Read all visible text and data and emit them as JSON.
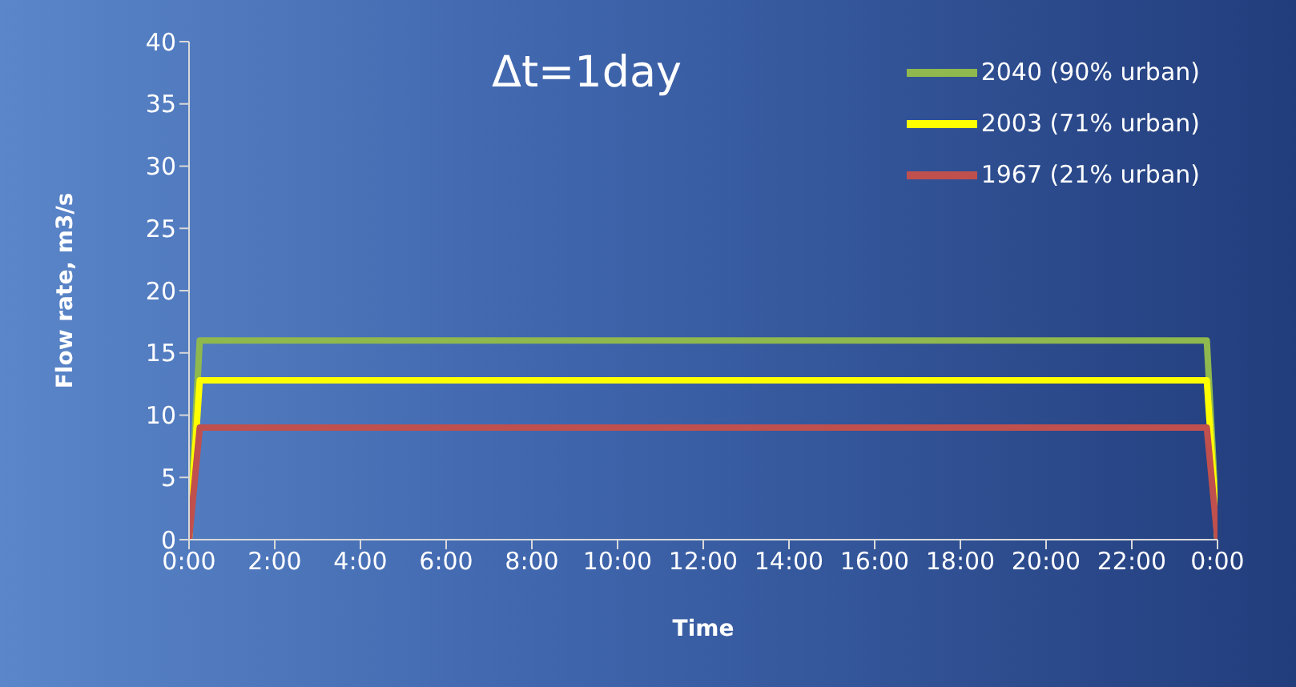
{
  "chart_data": {
    "type": "line",
    "xlabel": "Time",
    "ylabel": "Flow rate, m3/s",
    "annotations": [
      "Δt=1day"
    ],
    "series": [
      {
        "name": "2040 (90% urban)",
        "color": "#8fb84e",
        "x": [
          0,
          0.25,
          23.75,
          24
        ],
        "values": [
          0,
          16,
          16,
          0
        ]
      },
      {
        "name": "2003 (71% urban)",
        "color": "#ffff00",
        "x": [
          0,
          0.25,
          23.75,
          24
        ],
        "values": [
          0,
          12.8,
          12.8,
          0
        ]
      },
      {
        "name": "1967 (21% urban)",
        "color": "#c0504d",
        "x": [
          0,
          0.25,
          23.75,
          24
        ],
        "values": [
          0,
          9,
          9,
          0
        ]
      }
    ],
    "xlim": [
      0,
      24
    ],
    "xticks": [
      {
        "value": 0,
        "label": "0:00"
      },
      {
        "value": 2,
        "label": "2:00"
      },
      {
        "value": 4,
        "label": "4:00"
      },
      {
        "value": 6,
        "label": "6:00"
      },
      {
        "value": 8,
        "label": "8:00"
      },
      {
        "value": 10,
        "label": "10:00"
      },
      {
        "value": 12,
        "label": "12:00"
      },
      {
        "value": 14,
        "label": "14:00"
      },
      {
        "value": 16,
        "label": "16:00"
      },
      {
        "value": 18,
        "label": "18:00"
      },
      {
        "value": 20,
        "label": "20:00"
      },
      {
        "value": 22,
        "label": "22:00"
      },
      {
        "value": 24,
        "label": "0:00"
      }
    ],
    "ylim": [
      0,
      40
    ],
    "yticks": [
      0,
      5,
      10,
      15,
      20,
      25,
      30,
      35,
      40
    ],
    "grid": false,
    "legend": "top right",
    "marker": "none",
    "line_style": "solid"
  }
}
